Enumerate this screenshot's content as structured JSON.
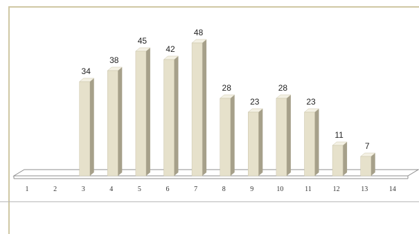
{
  "chart_data": {
    "type": "bar",
    "categories": [
      "1",
      "2",
      "3",
      "4",
      "5",
      "6",
      "7",
      "8",
      "9",
      "10",
      "11",
      "12",
      "13",
      "14"
    ],
    "values": [
      null,
      null,
      34,
      38,
      45,
      42,
      48,
      28,
      23,
      28,
      23,
      11,
      7,
      null
    ],
    "ylim": [
      0,
      48
    ],
    "grid": false,
    "legend": "none",
    "style": "3d-column"
  },
  "colors": {
    "bar_front": "#e6e1cb",
    "bar_side": "#a6a08a",
    "bar_top": "#f4f1e4",
    "bar_outline": "#c9c3aa",
    "floor_fill": "#ffffff",
    "floor_stroke": "#8c8c8c",
    "frame": "#cfc7a3"
  }
}
